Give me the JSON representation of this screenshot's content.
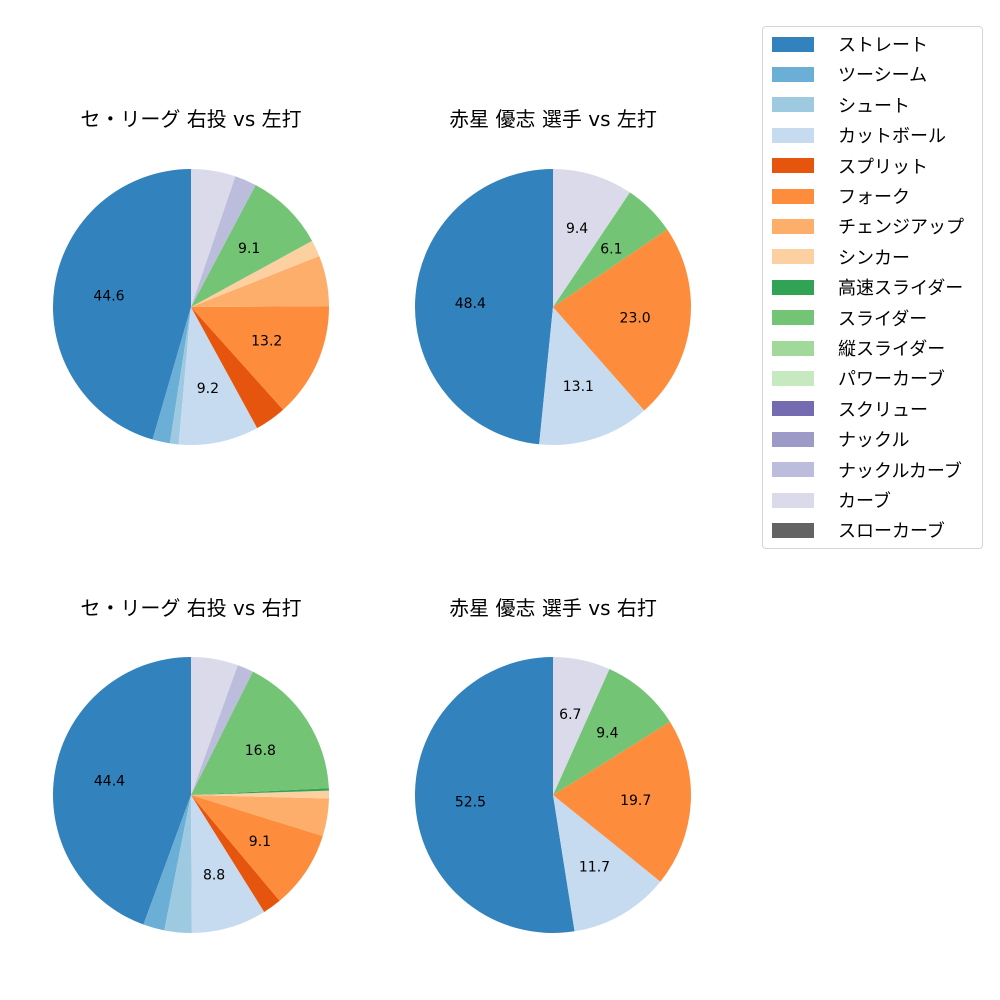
{
  "legend": {
    "items": [
      {
        "label": "ストレート",
        "color": "#3182bd"
      },
      {
        "label": "ツーシーム",
        "color": "#6baed6"
      },
      {
        "label": "シュート",
        "color": "#9ecae1"
      },
      {
        "label": "カットボール",
        "color": "#c6dbef"
      },
      {
        "label": "スプリット",
        "color": "#e6550d"
      },
      {
        "label": "フォーク",
        "color": "#fd8d3c"
      },
      {
        "label": "チェンジアップ",
        "color": "#fdae6b"
      },
      {
        "label": "シンカー",
        "color": "#fdd0a2"
      },
      {
        "label": "高速スライダー",
        "color": "#31a354"
      },
      {
        "label": "スライダー",
        "color": "#74c476"
      },
      {
        "label": "縦スライダー",
        "color": "#a1d99b"
      },
      {
        "label": "パワーカーブ",
        "color": "#c7e9c0"
      },
      {
        "label": "スクリュー",
        "color": "#756bb1"
      },
      {
        "label": "ナックル",
        "color": "#9e9ac8"
      },
      {
        "label": "ナックルカーブ",
        "color": "#bcbddc"
      },
      {
        "label": "カーブ",
        "color": "#dadaeb"
      },
      {
        "label": "スローカーブ",
        "color": "#636363"
      }
    ]
  },
  "chart_data": [
    {
      "type": "pie",
      "title": "セ・リーグ 右投 vs 左打",
      "start_angle": 90,
      "direction": "counterclockwise",
      "label_threshold": 5.5,
      "slices": [
        {
          "label": "ストレート",
          "value": 44.6,
          "shown": "44.6"
        },
        {
          "label": "ツーシーム",
          "value": 2.0
        },
        {
          "label": "シュート",
          "value": 1.0
        },
        {
          "label": "カットボール",
          "value": 9.2,
          "shown": "9.2"
        },
        {
          "label": "スプリット",
          "value": 3.6
        },
        {
          "label": "フォーク",
          "value": 13.2,
          "shown": "13.2"
        },
        {
          "label": "チェンジアップ",
          "value": 5.8
        },
        {
          "label": "シンカー",
          "value": 1.9
        },
        {
          "label": "スライダー",
          "value": 9.1,
          "shown": "9.1"
        },
        {
          "label": "ナックルカーブ",
          "value": 2.5
        },
        {
          "label": "カーブ",
          "value": 5.1
        }
      ]
    },
    {
      "type": "pie",
      "title": "赤星 優志 選手 vs 左打",
      "start_angle": 90,
      "direction": "counterclockwise",
      "slices": [
        {
          "label": "ストレート",
          "value": 48.4,
          "shown": "48.4"
        },
        {
          "label": "カットボール",
          "value": 13.1,
          "shown": "13.1"
        },
        {
          "label": "フォーク",
          "value": 23.0,
          "shown": "23.0"
        },
        {
          "label": "スライダー",
          "value": 6.1,
          "shown": "6.1"
        },
        {
          "label": "カーブ",
          "value": 9.4,
          "shown": "9.4"
        }
      ]
    },
    {
      "type": "pie",
      "title": "セ・リーグ 右投 vs 右打",
      "start_angle": 90,
      "direction": "counterclockwise",
      "slices": [
        {
          "label": "ストレート",
          "value": 44.4,
          "shown": "44.4"
        },
        {
          "label": "ツーシーム",
          "value": 2.5
        },
        {
          "label": "シュート",
          "value": 3.2
        },
        {
          "label": "カットボール",
          "value": 8.8,
          "shown": "8.8"
        },
        {
          "label": "スプリット",
          "value": 2.2
        },
        {
          "label": "フォーク",
          "value": 9.1,
          "shown": "9.1"
        },
        {
          "label": "チェンジアップ",
          "value": 4.4
        },
        {
          "label": "シンカー",
          "value": 0.9
        },
        {
          "label": "高速スライダー",
          "value": 0.3
        },
        {
          "label": "スライダー",
          "value": 16.8,
          "shown": "16.8"
        },
        {
          "label": "ナックルカーブ",
          "value": 1.9
        },
        {
          "label": "カーブ",
          "value": 5.5
        }
      ]
    },
    {
      "type": "pie",
      "title": "赤星 優志 選手 vs 右打",
      "start_angle": 90,
      "direction": "counterclockwise",
      "slices": [
        {
          "label": "ストレート",
          "value": 52.5,
          "shown": "52.5"
        },
        {
          "label": "カットボール",
          "value": 11.7,
          "shown": "11.7"
        },
        {
          "label": "フォーク",
          "value": 19.7,
          "shown": "19.7"
        },
        {
          "label": "スライダー",
          "value": 9.4,
          "shown": "9.4"
        },
        {
          "label": "カーブ",
          "value": 6.7,
          "shown": "6.7"
        }
      ]
    }
  ]
}
